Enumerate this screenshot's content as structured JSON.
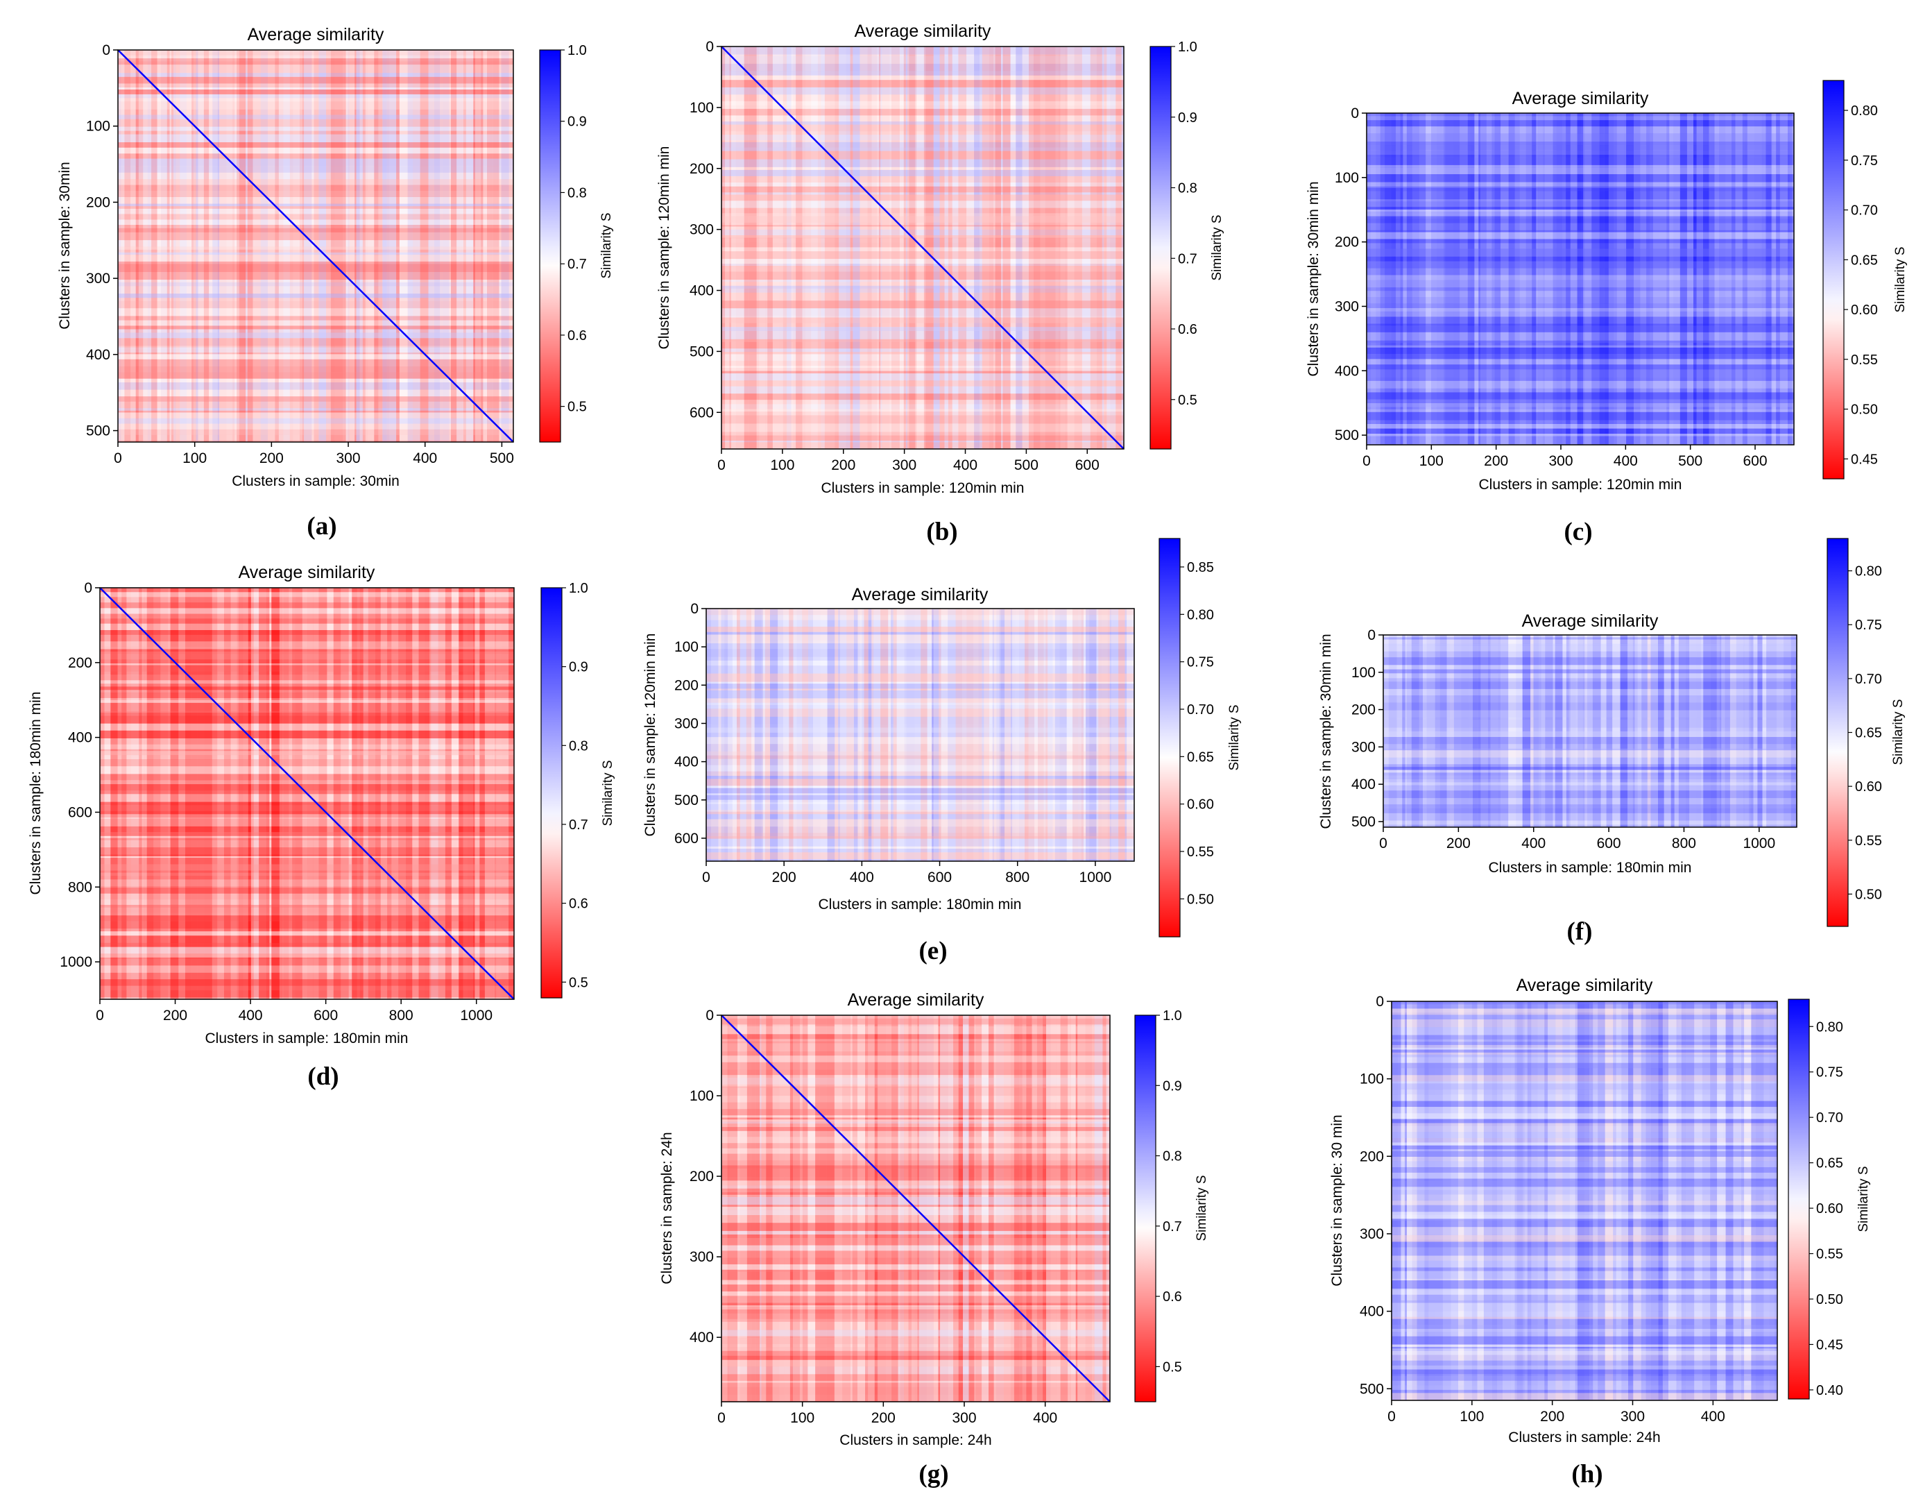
{
  "figure": {
    "colors": {
      "low": "#ff0000",
      "mid": "#ffffff",
      "high": "#0000ff",
      "axis": "#000000"
    },
    "panels": [
      {
        "letter": "(a)",
        "title": "Average similarity",
        "xlabel": "Clusters in sample: 30min",
        "ylabel": "Clusters in sample: 30min",
        "cbar_label": "Similarity S",
        "chart_data": {
          "type": "heatmap",
          "title": "Average similarity",
          "xlabel": "Clusters in sample: 30min",
          "ylabel": "Clusters in sample: 30min",
          "xlim": [
            0,
            515
          ],
          "ylim": [
            0,
            515
          ],
          "x_ticks": [
            0,
            100,
            200,
            300,
            400,
            500
          ],
          "y_ticks": [
            0,
            100,
            200,
            300,
            400,
            500
          ],
          "colorbar": {
            "label": "Similarity S",
            "range": [
              0.45,
              1.0
            ],
            "mid": 0.7,
            "ticks": [
              "0.5",
              "0.6",
              "0.7",
              "0.8",
              "0.9",
              "1.0"
            ]
          },
          "diagonal": true,
          "dominant_tone": "red",
          "mean_similarity": 0.66
        }
      },
      {
        "letter": "(b)",
        "title": "Average similarity",
        "xlabel": "Clusters in sample: 120min min",
        "ylabel": "Clusters in sample: 120min min",
        "cbar_label": "Similarity S",
        "chart_data": {
          "type": "heatmap",
          "title": "Average similarity",
          "xlabel": "Clusters in sample: 120min min",
          "ylabel": "Clusters in sample: 120min min",
          "xlim": [
            0,
            660
          ],
          "ylim": [
            0,
            660
          ],
          "x_ticks": [
            0,
            100,
            200,
            300,
            400,
            500,
            600
          ],
          "y_ticks": [
            0,
            100,
            200,
            300,
            400,
            500,
            600
          ],
          "colorbar": {
            "label": "Similarity S",
            "range": [
              0.43,
              1.0
            ],
            "mid": 0.7,
            "ticks": [
              "0.5",
              "0.6",
              "0.7",
              "0.8",
              "0.9",
              "1.0"
            ]
          },
          "diagonal": true,
          "dominant_tone": "red",
          "mean_similarity": 0.67
        }
      },
      {
        "letter": "(c)",
        "title": "Average similarity",
        "xlabel": "Clusters in sample: 120min min",
        "ylabel": "Clusters in sample: 30min min",
        "cbar_label": "Similarity S",
        "chart_data": {
          "type": "heatmap",
          "title": "Average similarity",
          "xlabel": "Clusters in sample: 120min min",
          "ylabel": "Clusters in sample: 30min min",
          "xlim": [
            0,
            660
          ],
          "ylim": [
            0,
            515
          ],
          "x_ticks": [
            0,
            100,
            200,
            300,
            400,
            500,
            600
          ],
          "y_ticks": [
            0,
            100,
            200,
            300,
            400,
            500
          ],
          "colorbar": {
            "label": "Similarity S",
            "range": [
              0.43,
              0.83
            ],
            "mid": 0.6,
            "ticks": [
              "0.45",
              "0.50",
              "0.55",
              "0.60",
              "0.65",
              "0.70",
              "0.75",
              "0.80"
            ]
          },
          "diagonal": false,
          "dominant_tone": "blue",
          "mean_similarity": 0.72
        }
      },
      {
        "letter": "(d)",
        "title": "Average similarity",
        "xlabel": "Clusters in sample: 180min min",
        "ylabel": "Clusters in sample: 180min min",
        "cbar_label": "Similarity S",
        "chart_data": {
          "type": "heatmap",
          "title": "Average similarity",
          "xlabel": "Clusters in sample: 180min min",
          "ylabel": "Clusters in sample: 180min min",
          "xlim": [
            0,
            1100
          ],
          "ylim": [
            0,
            1100
          ],
          "x_ticks": [
            0,
            200,
            400,
            600,
            800,
            1000
          ],
          "y_ticks": [
            0,
            200,
            400,
            600,
            800,
            1000
          ],
          "colorbar": {
            "label": "Similarity S",
            "range": [
              0.48,
              1.0
            ],
            "mid": 0.7,
            "ticks": [
              "0.5",
              "0.6",
              "0.7",
              "0.8",
              "0.9",
              "1.0"
            ]
          },
          "diagonal": true,
          "dominant_tone": "red",
          "mean_similarity": 0.6
        }
      },
      {
        "letter": "(e)",
        "title": "Average similarity",
        "xlabel": "Clusters in sample: 180min min",
        "ylabel": "Clusters in sample: 120min min",
        "cbar_label": "Similarity S",
        "chart_data": {
          "type": "heatmap",
          "title": "Average similarity",
          "xlabel": "Clusters in sample: 180min min",
          "ylabel": "Clusters in sample: 120min min",
          "xlim": [
            0,
            1100
          ],
          "ylim": [
            0,
            660
          ],
          "x_ticks": [
            0,
            200,
            400,
            600,
            800,
            1000
          ],
          "y_ticks": [
            0,
            100,
            200,
            300,
            400,
            500,
            600
          ],
          "colorbar": {
            "label": "Similarity S",
            "range": [
              0.46,
              0.88
            ],
            "mid": 0.65,
            "ticks": [
              "0.50",
              "0.55",
              "0.60",
              "0.65",
              "0.70",
              "0.75",
              "0.80",
              "0.85"
            ]
          },
          "diagonal": false,
          "dominant_tone": "mixed",
          "mean_similarity": 0.67
        }
      },
      {
        "letter": "(f)",
        "title": "Average similarity",
        "xlabel": "Clusters in sample: 180min min",
        "ylabel": "Clusters in sample: 30min min",
        "cbar_label": "Similarity S",
        "chart_data": {
          "type": "heatmap",
          "title": "Average similarity",
          "xlabel": "Clusters in sample: 180min min",
          "ylabel": "Clusters in sample: 30min min",
          "xlim": [
            0,
            1100
          ],
          "ylim": [
            0,
            515
          ],
          "x_ticks": [
            0,
            200,
            400,
            600,
            800,
            1000
          ],
          "y_ticks": [
            0,
            100,
            200,
            300,
            400,
            500
          ],
          "colorbar": {
            "label": "Similarity S",
            "range": [
              0.47,
              0.83
            ],
            "mid": 0.63,
            "ticks": [
              "0.50",
              "0.55",
              "0.60",
              "0.65",
              "0.70",
              "0.75",
              "0.80"
            ]
          },
          "diagonal": false,
          "dominant_tone": "blue",
          "mean_similarity": 0.69
        }
      },
      {
        "letter": "(g)",
        "title": "Average similarity",
        "xlabel": "Clusters in sample: 24h",
        "ylabel": "Clusters in sample: 24h",
        "cbar_label": "Similarity S",
        "chart_data": {
          "type": "heatmap",
          "title": "Average similarity",
          "xlabel": "Clusters in sample: 24h",
          "ylabel": "Clusters in sample: 24h",
          "xlim": [
            0,
            480
          ],
          "ylim": [
            0,
            480
          ],
          "x_ticks": [
            0,
            100,
            200,
            300,
            400
          ],
          "y_ticks": [
            0,
            100,
            200,
            300,
            400
          ],
          "colorbar": {
            "label": "Similarity S",
            "range": [
              0.45,
              1.0
            ],
            "mid": 0.7,
            "ticks": [
              "0.5",
              "0.6",
              "0.7",
              "0.8",
              "0.9",
              "1.0"
            ]
          },
          "diagonal": true,
          "dominant_tone": "red",
          "mean_similarity": 0.62
        }
      },
      {
        "letter": "(h)",
        "title": "Average similarity",
        "xlabel": "Clusters in sample: 24h",
        "ylabel": "Clusters in sample: 30 min",
        "cbar_label": "Similarity S",
        "chart_data": {
          "type": "heatmap",
          "title": "Average similarity",
          "xlabel": "Clusters in sample: 24h",
          "ylabel": "Clusters in sample: 30 min",
          "xlim": [
            0,
            480
          ],
          "ylim": [
            0,
            515
          ],
          "x_ticks": [
            0,
            100,
            200,
            300,
            400
          ],
          "y_ticks": [
            0,
            100,
            200,
            300,
            400,
            500
          ],
          "colorbar": {
            "label": "Similarity S",
            "range": [
              0.39,
              0.83
            ],
            "mid": 0.6,
            "ticks": [
              "0.40",
              "0.45",
              "0.50",
              "0.55",
              "0.60",
              "0.65",
              "0.70",
              "0.75",
              "0.80"
            ]
          },
          "diagonal": false,
          "dominant_tone": "blue",
          "mean_similarity": 0.66
        }
      }
    ]
  }
}
